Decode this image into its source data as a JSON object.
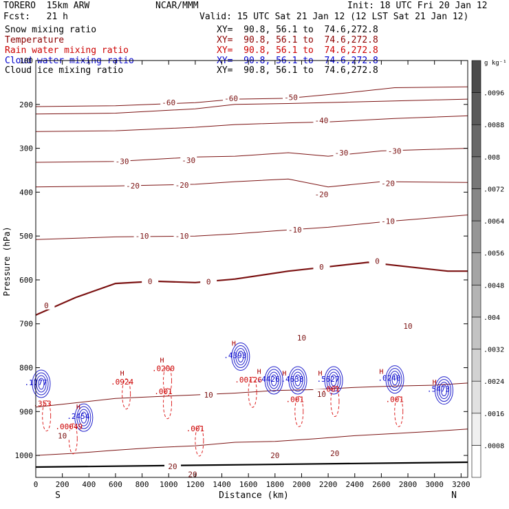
{
  "header": {
    "model": "TORERO  15km ARW",
    "org": "NCAR/MMM",
    "init": "Init: 18 UTC Fri 20 Jan 12",
    "fcst": "Fcst:   21 h",
    "valid": "Valid: 15 UTC Sat 21 Jan 12 (12 LST Sat 21 Jan 12)"
  },
  "legend": [
    {
      "name": "Snow mixing ratio",
      "xy": "XY=  90.8, 56.1 to  74.6,272.8",
      "color": "#000000"
    },
    {
      "name": "Temperature",
      "xy": "XY=  90.8, 56.1 to  74.6,272.8",
      "color": "#8b0000"
    },
    {
      "name": "Rain water mixing ratio",
      "xy": "XY=  90.8, 56.1 to  74.6,272.8",
      "color": "#cc0000"
    },
    {
      "name": "Cloud water mixing ratio",
      "xy": "XY=  90.8, 56.1 to  74.6,272.8",
      "color": "#0000cc"
    },
    {
      "name": "Cloud ice mixing ratio",
      "xy": "XY=  90.8, 56.1 to  74.6,272.8",
      "color": "#000000"
    }
  ],
  "chart_data": {
    "type": "contour-cross-section",
    "xlabel": "Distance (km)",
    "ylabel": "Pressure (hPa)",
    "xlim": [
      0,
      3250
    ],
    "ylim": [
      1050,
      100
    ],
    "x_ticks": [
      0,
      200,
      400,
      600,
      800,
      1000,
      1200,
      1400,
      1600,
      1800,
      2000,
      2200,
      2400,
      2600,
      2800,
      3000,
      3200
    ],
    "y_ticks": [
      100,
      200,
      300,
      400,
      500,
      600,
      700,
      800,
      900,
      1000
    ],
    "endpoint_left": "S",
    "endpoint_right": "N",
    "colorbar": {
      "unit": "g kg⁻¹",
      "levels": [
        ".0008",
        ".0016",
        ".0024",
        ".0032",
        ".004",
        ".0048",
        ".0056",
        ".0064",
        ".0072",
        ".008",
        ".0088",
        ".0096"
      ],
      "colors": [
        "#ffffff",
        "#f0f0f0",
        "#e1e1e1",
        "#d2d2d2",
        "#c3c3c3",
        "#b4b4b4",
        "#a5a5a5",
        "#969696",
        "#878787",
        "#787878",
        "#696969",
        "#5a5a5a",
        "#4b4b4b"
      ]
    },
    "temperature_isotherms": [
      {
        "label": "-60",
        "p": [
          [
            0,
            205
          ],
          [
            600,
            203
          ],
          [
            1200,
            196
          ],
          [
            1500,
            188
          ],
          [
            1900,
            186
          ],
          [
            2300,
            175
          ],
          [
            2700,
            162
          ],
          [
            3250,
            160
          ]
        ]
      },
      {
        "label": "-50",
        "p": [
          [
            0,
            222
          ],
          [
            600,
            220
          ],
          [
            1200,
            210
          ],
          [
            1500,
            200
          ],
          [
            1900,
            198
          ],
          [
            2300,
            195
          ],
          [
            2700,
            192
          ],
          [
            3250,
            188
          ]
        ]
      },
      {
        "label": "-40",
        "p": [
          [
            0,
            262
          ],
          [
            600,
            260
          ],
          [
            1200,
            252
          ],
          [
            1500,
            246
          ],
          [
            1900,
            242
          ],
          [
            2200,
            240
          ],
          [
            2700,
            232
          ],
          [
            3250,
            226
          ]
        ]
      },
      {
        "label": "-30",
        "p": [
          [
            0,
            332
          ],
          [
            600,
            330
          ],
          [
            1200,
            320
          ],
          [
            1500,
            318
          ],
          [
            1900,
            310
          ],
          [
            2200,
            318
          ],
          [
            2600,
            306
          ],
          [
            3250,
            300
          ]
        ]
      },
      {
        "label": "-20",
        "p": [
          [
            0,
            388
          ],
          [
            600,
            386
          ],
          [
            1200,
            382
          ],
          [
            1500,
            376
          ],
          [
            1900,
            370
          ],
          [
            2200,
            388
          ],
          [
            2600,
            376
          ],
          [
            3250,
            378
          ]
        ]
      },
      {
        "label": "-10",
        "p": [
          [
            0,
            508
          ],
          [
            600,
            502
          ],
          [
            1200,
            500
          ],
          [
            1500,
            495
          ],
          [
            1900,
            486
          ],
          [
            2200,
            480
          ],
          [
            2600,
            468
          ],
          [
            3250,
            452
          ]
        ]
      },
      {
        "label": "0",
        "p": [
          [
            0,
            680
          ],
          [
            300,
            640
          ],
          [
            600,
            608
          ],
          [
            900,
            603
          ],
          [
            1200,
            606
          ],
          [
            1500,
            598
          ],
          [
            1900,
            580
          ],
          [
            2200,
            570
          ],
          [
            2500,
            560
          ],
          [
            2800,
            570
          ],
          [
            3100,
            580
          ],
          [
            3250,
            580
          ]
        ]
      },
      {
        "label": "10",
        "p": [
          [
            0,
            890
          ],
          [
            300,
            880
          ],
          [
            600,
            870
          ],
          [
            900,
            866
          ],
          [
            1200,
            862
          ],
          [
            1500,
            858
          ],
          [
            1800,
            852
          ],
          [
            2100,
            850
          ],
          [
            2400,
            845
          ],
          [
            2700,
            842
          ],
          [
            3000,
            840
          ],
          [
            3250,
            835
          ]
        ]
      },
      {
        "label": "20",
        "p": [
          [
            0,
            1000
          ],
          [
            300,
            995
          ],
          [
            600,
            988
          ],
          [
            900,
            982
          ],
          [
            1200,
            978
          ],
          [
            1500,
            970
          ],
          [
            1800,
            968
          ],
          [
            2100,
            962
          ],
          [
            2400,
            955
          ],
          [
            2700,
            950
          ],
          [
            3000,
            945
          ],
          [
            3250,
            940
          ]
        ]
      }
    ],
    "thermal_labels": [
      {
        "text": "-60",
        "x": 1000,
        "p": 196
      },
      {
        "text": "-60",
        "x": 1470,
        "p": 186
      },
      {
        "text": "-50",
        "x": 1920,
        "p": 184
      },
      {
        "text": "-40",
        "x": 2150,
        "p": 236
      },
      {
        "text": "-30",
        "x": 650,
        "p": 330
      },
      {
        "text": "-30",
        "x": 1150,
        "p": 327
      },
      {
        "text": "-30",
        "x": 2300,
        "p": 310
      },
      {
        "text": "-30",
        "x": 2700,
        "p": 306
      },
      {
        "text": "-20",
        "x": 730,
        "p": 385
      },
      {
        "text": "-20",
        "x": 1100,
        "p": 384
      },
      {
        "text": "-20",
        "x": 2150,
        "p": 405
      },
      {
        "text": "-20",
        "x": 2650,
        "p": 380
      },
      {
        "text": "-10",
        "x": 800,
        "p": 500
      },
      {
        "text": "-10",
        "x": 1100,
        "p": 500
      },
      {
        "text": "-10",
        "x": 1950,
        "p": 486
      },
      {
        "text": "-10",
        "x": 2650,
        "p": 466
      },
      {
        "text": "0",
        "x": 80,
        "p": 658
      },
      {
        "text": "0",
        "x": 860,
        "p": 603
      },
      {
        "text": "0",
        "x": 1300,
        "p": 604
      },
      {
        "text": "0",
        "x": 2150,
        "p": 570
      },
      {
        "text": "0",
        "x": 2570,
        "p": 557
      },
      {
        "text": "10",
        "x": 2000,
        "p": 732
      },
      {
        "text": "10",
        "x": 2800,
        "p": 705
      },
      {
        "text": "10",
        "x": 1300,
        "p": 862
      },
      {
        "text": "10",
        "x": 2150,
        "p": 860
      },
      {
        "text": "10",
        "x": 200,
        "p": 955
      },
      {
        "text": "20",
        "x": 1030,
        "p": 1025
      },
      {
        "text": "20",
        "x": 1180,
        "p": 1043
      },
      {
        "text": "20",
        "x": 1800,
        "p": 1000
      },
      {
        "text": "20",
        "x": 2250,
        "p": 995
      }
    ],
    "rain_labels": [
      {
        "text": ".353",
        "x": 50,
        "p": 888
      },
      {
        "text": ".00049",
        "x": 250,
        "p": 940
      },
      {
        "text": ".001",
        "x": 960,
        "p": 860
      },
      {
        "text": ".001",
        "x": 1200,
        "p": 945
      },
      {
        "text": ".00126",
        "x": 1600,
        "p": 834
      },
      {
        "text": ".001",
        "x": 1950,
        "p": 878
      },
      {
        "text": ".001",
        "x": 2220,
        "p": 855
      },
      {
        "text": ".001",
        "x": 2700,
        "p": 878
      },
      {
        "text": ".0924",
        "x": 650,
        "p": 838
      },
      {
        "text": ".0200",
        "x": 960,
        "p": 808
      }
    ],
    "cloud_labels": [
      {
        "text": ".4393",
        "x": 1500,
        "p": 778
      },
      {
        "text": ".4426",
        "x": 1750,
        "p": 832
      },
      {
        "text": ".4638",
        "x": 1930,
        "p": 832
      },
      {
        "text": ".5627",
        "x": 2200,
        "p": 832
      },
      {
        "text": ".2454",
        "x": 320,
        "p": 917
      },
      {
        "text": ".0240",
        "x": 2660,
        "p": 830
      },
      {
        "text": ".5473",
        "x": 3030,
        "p": 855
      },
      {
        "text": ".1777",
        "x": 0,
        "p": 840
      }
    ],
    "h_markers": [
      {
        "x": 650,
        "p": 818
      },
      {
        "x": 950,
        "p": 788
      },
      {
        "x": 1490,
        "p": 750
      },
      {
        "x": 1680,
        "p": 814
      },
      {
        "x": 1870,
        "p": 818
      },
      {
        "x": 2140,
        "p": 818
      },
      {
        "x": 2600,
        "p": 814
      },
      {
        "x": 3000,
        "p": 838
      },
      {
        "x": 320,
        "p": 895
      }
    ]
  }
}
